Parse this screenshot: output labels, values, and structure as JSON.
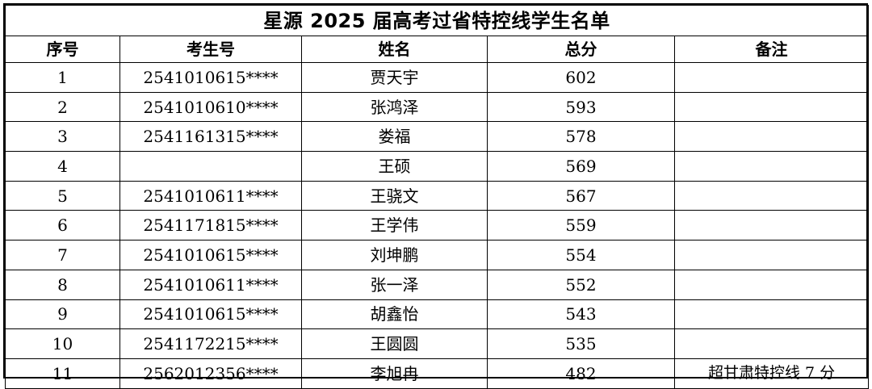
{
  "title": "星源 2025 届高考过省特控线学生名单",
  "columns": [
    "序号",
    "考生号",
    "姓名",
    "总分",
    "备注"
  ],
  "rows": [
    {
      "no": "1",
      "exam_id": "2541010615****",
      "name": "贾天宇",
      "score": "602",
      "note": ""
    },
    {
      "no": "2",
      "exam_id": "2541010610****",
      "name": "张鸿泽",
      "score": "593",
      "note": ""
    },
    {
      "no": "3",
      "exam_id": "2541161315****",
      "name": "娄福",
      "score": "578",
      "note": ""
    },
    {
      "no": "4",
      "exam_id": "",
      "name": "王硕",
      "score": "569",
      "note": ""
    },
    {
      "no": "5",
      "exam_id": "2541010611****",
      "name": "王骁文",
      "score": "567",
      "note": ""
    },
    {
      "no": "6",
      "exam_id": "2541171815****",
      "name": "王学伟",
      "score": "559",
      "note": ""
    },
    {
      "no": "7",
      "exam_id": "2541010615****",
      "name": "刘坤鹏",
      "score": "554",
      "note": ""
    },
    {
      "no": "8",
      "exam_id": "2541010611****",
      "name": "张一泽",
      "score": "552",
      "note": ""
    },
    {
      "no": "9",
      "exam_id": "2541010615****",
      "name": "胡鑫怡",
      "score": "543",
      "note": ""
    },
    {
      "no": "10",
      "exam_id": "2541172215****",
      "name": "王圆圆",
      "score": "535",
      "note": ""
    },
    {
      "no": "11",
      "exam_id": "2562012356****",
      "name": "李旭冉",
      "score": "482",
      "note": "超甘肃特控线 7 分"
    }
  ]
}
